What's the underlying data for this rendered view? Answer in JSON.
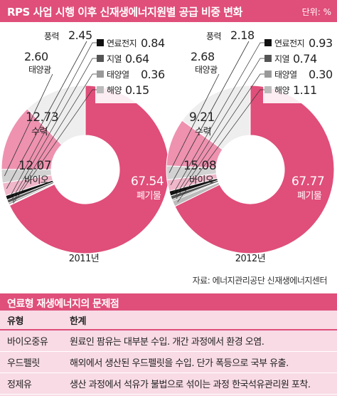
{
  "header": {
    "title": "RPS 사업 시행 이후 신재생에너지원별 공급 비중 변화",
    "unit": "단위: %"
  },
  "colors": {
    "accent": "#e04e7a",
    "waste": "#e04e7a",
    "bio": "#eeeeee",
    "hydro": "#ee92b0",
    "solar": "#d2d2d2",
    "wind": "#f0b6ca",
    "fuel_cell": "#111111",
    "geothermal": "#555555",
    "solar_thermal": "#999999",
    "ocean": "#bbbbbb",
    "problems_bg": "#f8dbe5"
  },
  "chart_data": [
    {
      "type": "pie",
      "donut": true,
      "year_label": "2011년",
      "slices": [
        {
          "name": "폐기물",
          "value": 67.54
        },
        {
          "name": "바이오",
          "value": 12.07
        },
        {
          "name": "수력",
          "value": 12.73
        },
        {
          "name": "태양광",
          "value": 2.6
        },
        {
          "name": "풍력",
          "value": 2.45
        },
        {
          "name": "연료전지",
          "value": 0.84
        },
        {
          "name": "지열",
          "value": 0.64
        },
        {
          "name": "태양열",
          "value": 0.36
        },
        {
          "name": "해양",
          "value": 0.15
        }
      ]
    },
    {
      "type": "pie",
      "donut": true,
      "year_label": "2012년",
      "slices": [
        {
          "name": "폐기물",
          "value": 67.77
        },
        {
          "name": "바이오",
          "value": 15.08
        },
        {
          "name": "수력",
          "value": 9.21
        },
        {
          "name": "태양광",
          "value": 2.68
        },
        {
          "name": "풍력",
          "value": 2.18
        },
        {
          "name": "연료전지",
          "value": 0.93
        },
        {
          "name": "지열",
          "value": 0.74
        },
        {
          "name": "태양열",
          "value": 0.3
        },
        {
          "name": "해양",
          "value": 1.11
        }
      ]
    }
  ],
  "source": "자료: 에너지관리공단 신재생에너지센터",
  "problems": {
    "title": "연료형 재생에너지의 문제점",
    "columns": [
      "유형",
      "한계"
    ],
    "rows": [
      {
        "type": "바이오중유",
        "limit": "원료인 팜유는 대부분 수입. 개간 과정에서 환경 오염."
      },
      {
        "type": "우드펠릿",
        "limit": "해외에서 생산된 우드펠릿을 수입. 단가 폭등으로 국부 유출."
      },
      {
        "type": "정제유",
        "limit": "생산 과정에서 석유가 불법으로 섞이는 과정 한국석유관리원 포착."
      }
    ]
  }
}
